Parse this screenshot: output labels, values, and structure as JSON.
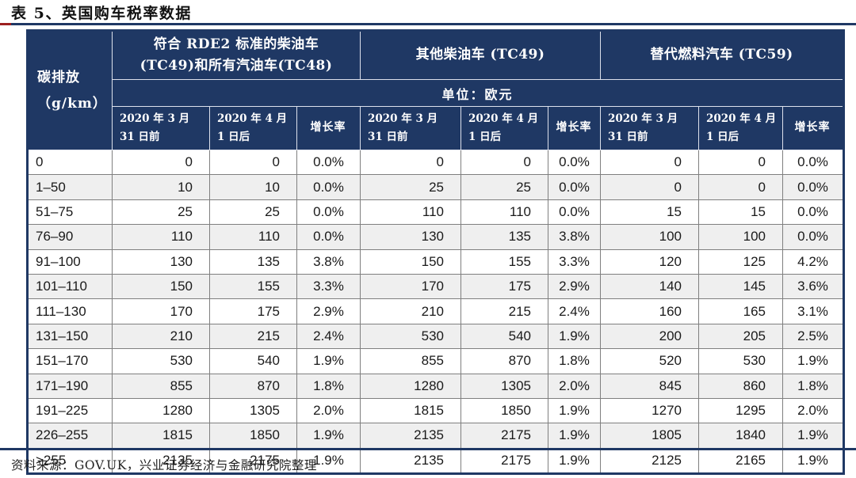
{
  "page": {
    "title": "表 5、英国购车税率数据",
    "source_note": "资料来源：GOV.UK，兴业证券经济与金融研究院整理"
  },
  "colors": {
    "header_navy": "#1f3864",
    "growth_rate_red": "#c00000",
    "row_stripe_gray": "#efefef",
    "grid_line_gray": "#7f7f7f",
    "title_rule_red_accent": "#9c1f1f"
  },
  "table": {
    "corner_header": "碳排放\n（g/km）",
    "unit_label": "单位：欧元",
    "groups": [
      {
        "label": "符合 RDE2 标准的柴油车\n(TC49)和所有汽油车(TC48)"
      },
      {
        "label": "其他柴油车 (TC49)"
      },
      {
        "label": "替代燃料汽车 (TC59)"
      }
    ],
    "sub_headers": [
      "2020 年 3 月\n31 日前",
      "2020 年 4 月\n1 日后",
      "增长率"
    ],
    "rows": [
      {
        "range": "0",
        "values": [
          "0",
          "0",
          "0.0%",
          "0",
          "0",
          "0.0%",
          "0",
          "0",
          "0.0%"
        ]
      },
      {
        "range": "1–50",
        "values": [
          "10",
          "10",
          "0.0%",
          "25",
          "25",
          "0.0%",
          "0",
          "0",
          "0.0%"
        ]
      },
      {
        "range": "51–75",
        "values": [
          "25",
          "25",
          "0.0%",
          "110",
          "110",
          "0.0%",
          "15",
          "15",
          "0.0%"
        ]
      },
      {
        "range": "76–90",
        "values": [
          "110",
          "110",
          "0.0%",
          "130",
          "135",
          "3.8%",
          "100",
          "100",
          "0.0%"
        ]
      },
      {
        "range": "91–100",
        "values": [
          "130",
          "135",
          "3.8%",
          "150",
          "155",
          "3.3%",
          "120",
          "125",
          "4.2%"
        ]
      },
      {
        "range": "101–110",
        "values": [
          "150",
          "155",
          "3.3%",
          "170",
          "175",
          "2.9%",
          "140",
          "145",
          "3.6%"
        ]
      },
      {
        "range": "111–130",
        "values": [
          "170",
          "175",
          "2.9%",
          "210",
          "215",
          "2.4%",
          "160",
          "165",
          "3.1%"
        ]
      },
      {
        "range": "131–150",
        "values": [
          "210",
          "215",
          "2.4%",
          "530",
          "540",
          "1.9%",
          "200",
          "205",
          "2.5%"
        ]
      },
      {
        "range": "151–170",
        "values": [
          "530",
          "540",
          "1.9%",
          "855",
          "870",
          "1.8%",
          "520",
          "530",
          "1.9%"
        ]
      },
      {
        "range": "171–190",
        "values": [
          "855",
          "870",
          "1.8%",
          "1280",
          "1305",
          "2.0%",
          "845",
          "860",
          "1.8%"
        ]
      },
      {
        "range": "191–225",
        "values": [
          "1280",
          "1305",
          "2.0%",
          "1815",
          "1850",
          "1.9%",
          "1270",
          "1295",
          "2.0%"
        ]
      },
      {
        "range": "226–255",
        "values": [
          "1815",
          "1850",
          "1.9%",
          "2135",
          "2175",
          "1.9%",
          "1805",
          "1840",
          "1.9%"
        ]
      },
      {
        "range": ">255",
        "values": [
          "2135",
          "2175",
          "1.9%",
          "2135",
          "2175",
          "1.9%",
          "2125",
          "2165",
          "1.9%"
        ]
      }
    ]
  }
}
